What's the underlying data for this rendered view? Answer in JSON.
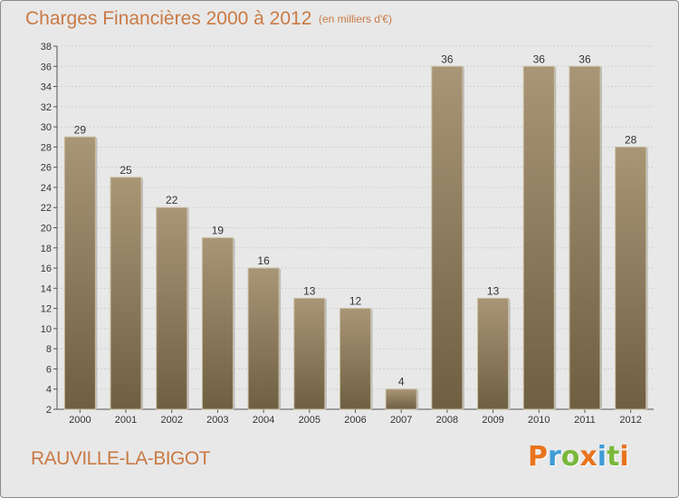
{
  "header": {
    "title": "Charges Financières 2000 à 2012",
    "subtitle": "(en milliers d'€)"
  },
  "footer": {
    "location": "RAUVILLE-LA-BIGOT",
    "brand": "Proxiti",
    "brand_colors": [
      "#e8741e",
      "#3f9bd6",
      "#7ab83c",
      "#e8741e",
      "#3f9bd6",
      "#7ab83c",
      "#e8741e"
    ]
  },
  "chart_data": {
    "type": "bar",
    "categories": [
      "2000",
      "2001",
      "2002",
      "2003",
      "2004",
      "2005",
      "2006",
      "2007",
      "2008",
      "2009",
      "2010",
      "2011",
      "2012"
    ],
    "values": [
      29,
      25,
      22,
      19,
      16,
      13,
      12,
      4,
      36,
      13,
      36,
      36,
      28
    ],
    "title": "Charges Financières 2000 à 2012",
    "subtitle": "(en milliers d'€)",
    "xlabel": "",
    "ylabel": "",
    "ylim": [
      2,
      38
    ],
    "yticks": [
      2,
      4,
      6,
      8,
      10,
      12,
      14,
      16,
      18,
      20,
      22,
      24,
      26,
      28,
      30,
      32,
      34,
      36,
      38
    ],
    "grid": true,
    "bar_color": "#8b7a5e",
    "data_labels": true
  }
}
